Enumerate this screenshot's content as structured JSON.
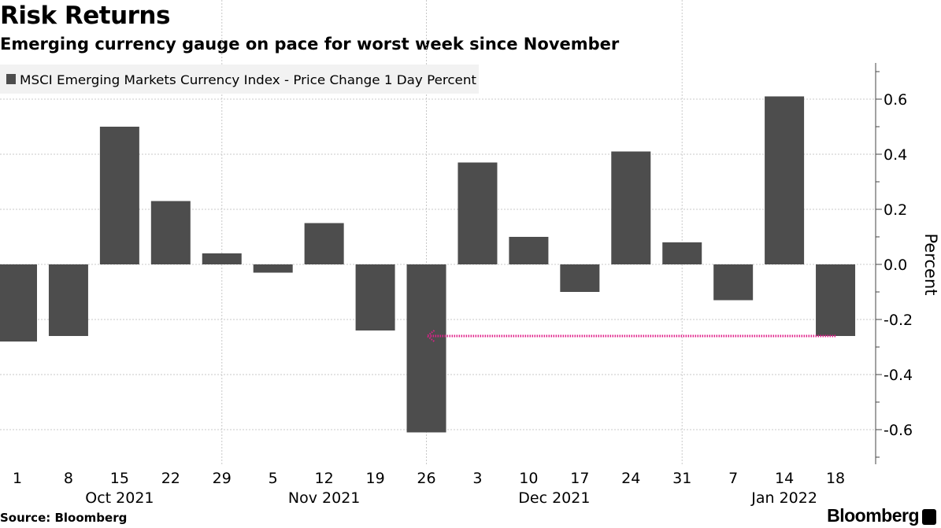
{
  "chart_data": {
    "type": "bar",
    "title": "Risk Returns",
    "subtitle": "Emerging currency gauge on pace for worst week since November",
    "legend": {
      "label": "MSCI Emerging Markets Currency Index - Price Change 1 Day Percent",
      "placement": "top-left"
    },
    "categories": [
      "1",
      "8",
      "15",
      "22",
      "29",
      "5",
      "12",
      "19",
      "26",
      "3",
      "10",
      "17",
      "24",
      "31",
      "7",
      "14",
      "18"
    ],
    "month_labels": [
      {
        "label": "Oct 2021",
        "center_category": 2
      },
      {
        "label": "Nov 2021",
        "center_category": 6
      },
      {
        "label": "Dec 2021",
        "center_category": 10.5
      },
      {
        "label": "Jan 2022",
        "center_category": 15
      }
    ],
    "series": [
      {
        "name": "MSCI Emerging Markets Currency Index - Price Change 1 Day Percent",
        "values": [
          -0.28,
          -0.26,
          0.5,
          0.23,
          0.04,
          -0.03,
          0.15,
          -0.24,
          -0.61,
          0.37,
          0.1,
          -0.1,
          0.41,
          0.08,
          -0.13,
          0.61,
          -0.26
        ]
      }
    ],
    "ylabel": "Percent",
    "ylim": [
      -0.72,
      0.74
    ],
    "yticks": [
      "0.6",
      "0.4",
      "0.2",
      "0.0",
      "-0.2",
      "-0.4",
      "-0.6"
    ],
    "ytick_values": [
      0.6,
      0.4,
      0.2,
      0.0,
      -0.2,
      -0.4,
      -0.6
    ],
    "vertical_gridlines_at_categories": [
      4,
      8,
      13
    ],
    "annotation": {
      "type": "arrow",
      "from_category": 16,
      "to_category": 8,
      "value": -0.26,
      "color": "#e0218a"
    },
    "grid": true,
    "bar_color": "#4d4d4d"
  },
  "source": "Source: Bloomberg",
  "brand": "Bloomberg"
}
